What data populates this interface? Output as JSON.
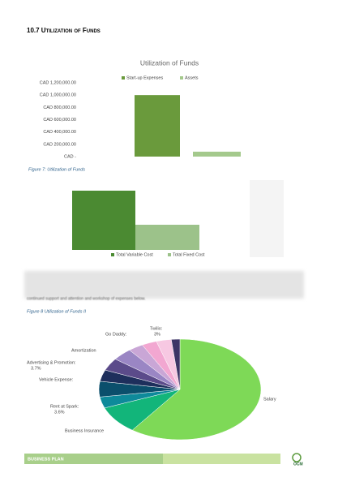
{
  "heading": "10.7 Utilization of Funds",
  "figure7_caption": "Figure 7: Utilization of Funds",
  "paragraph_tail": "continued support and attention and workshop of expenses below.",
  "figure8_caption": "Figure 8 Utilization of Funds II",
  "footer": {
    "label": "BUSINESS PLAN",
    "logo": "OCM"
  },
  "chart_data": [
    {
      "type": "bar",
      "title": "Utilization of Funds",
      "categories": [
        null
      ],
      "series": [
        {
          "name": "Start-up Expenses",
          "color": "#6a9a3c",
          "values": [
            1000000
          ]
        },
        {
          "name": "Assets",
          "color": "#a4c98c",
          "values": [
            80000
          ]
        }
      ],
      "ylim": [
        0,
        1200000
      ],
      "yticks": [
        {
          "value": 0,
          "label": "CAD -"
        },
        {
          "value": 200000,
          "label": "CAD 200,000.00"
        },
        {
          "value": 400000,
          "label": "CAD 400,000.00"
        },
        {
          "value": 600000,
          "label": "CAD 600,000.00"
        },
        {
          "value": 800000,
          "label": "CAD 800,000.00"
        },
        {
          "value": 1000000,
          "label": "CAD 1,000,000.00"
        },
        {
          "value": 1200000,
          "label": "CAD 1,200,000.00"
        }
      ],
      "legend": "top"
    },
    {
      "type": "bar",
      "categories": [
        null
      ],
      "series": [
        {
          "name": "Total Variable Cost",
          "color": "#4b8a32",
          "values": [
            73
          ]
        },
        {
          "name": "Total Fixed Cost",
          "color": "#9cc28a",
          "values": [
            31
          ]
        }
      ],
      "ylim": [
        0,
        73
      ],
      "legend": "bottom"
    },
    {
      "type": "pie",
      "categories": [
        "Salary",
        "Business Insurance",
        "Rent at Spark:",
        "Vehicle Expense:",
        "Advertising & Promotion:",
        "Amortization",
        "Go Daddy:",
        null,
        "Twilio:",
        null,
        null
      ],
      "values": [
        60,
        9,
        3.6,
        5,
        3.7,
        4,
        4,
        3,
        3,
        3,
        1.7
      ],
      "value_labels": [
        null,
        null,
        "3.6%",
        null,
        "3.7%",
        null,
        null,
        null,
        "3%",
        null,
        null
      ],
      "colors": [
        "#7ed957",
        "#12b57a",
        "#0e8a9a",
        "#0b4f6c",
        "#1e2f5c",
        "#5b4b8a",
        "#9a86c4",
        "#c9a6d6",
        "#f2a7d1",
        "#f7c8e2",
        "#3d3566"
      ]
    }
  ]
}
